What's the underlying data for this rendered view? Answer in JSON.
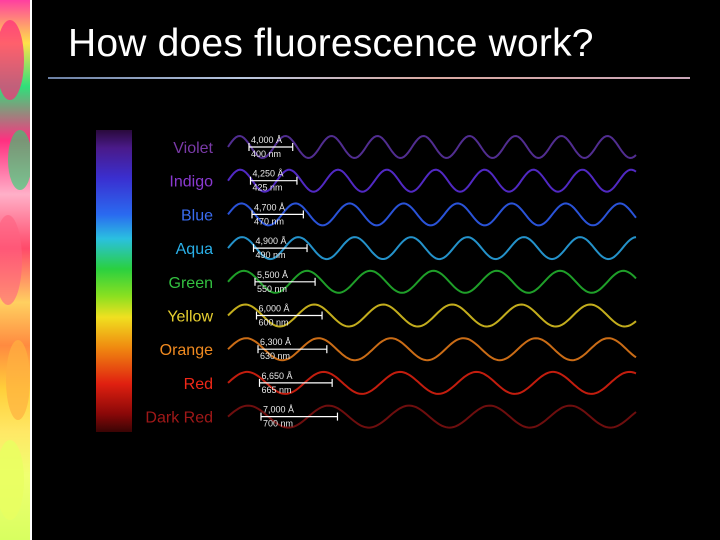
{
  "title": "How does fluorescence work?",
  "spectrum": [
    {
      "color_name": "Violet",
      "angstrom": "4,000 Å",
      "nm": "400 nm",
      "label_color": "#7a3aa8",
      "wave_color": "#5a32a0",
      "wavelength_nm": 400
    },
    {
      "color_name": "Indigo",
      "angstrom": "4,250 Å",
      "nm": "425 nm",
      "label_color": "#8a3ad0",
      "wave_color": "#5a2ed8",
      "wavelength_nm": 425
    },
    {
      "color_name": "Blue",
      "angstrom": "4,700 Å",
      "nm": "470 nm",
      "label_color": "#3a6cf0",
      "wave_color": "#2f5cf0",
      "wavelength_nm": 470
    },
    {
      "color_name": "Aqua",
      "angstrom": "4,900 Å",
      "nm": "490 nm",
      "label_color": "#2ab0e8",
      "wave_color": "#28a2e0",
      "wavelength_nm": 490
    },
    {
      "color_name": "Green",
      "angstrom": "5,500 Å",
      "nm": "550 nm",
      "label_color": "#33c040",
      "wave_color": "#22b02e",
      "wavelength_nm": 550
    },
    {
      "color_name": "Yellow",
      "angstrom": "6,000 Å",
      "nm": "600 nm",
      "label_color": "#e8d030",
      "wave_color": "#d8c020",
      "wavelength_nm": 600
    },
    {
      "color_name": "Orange",
      "angstrom": "6,300 Å",
      "nm": "630 nm",
      "label_color": "#f08a20",
      "wave_color": "#e07818",
      "wavelength_nm": 630
    },
    {
      "color_name": "Red",
      "angstrom": "6,650 Å",
      "nm": "665 nm",
      "label_color": "#f02818",
      "wave_color": "#d82010",
      "wavelength_nm": 665
    },
    {
      "color_name": "Dark Red",
      "angstrom": "7,000 Å",
      "nm": "700 nm",
      "label_color": "#a01818",
      "wave_color": "#7a1010",
      "wavelength_nm": 700
    }
  ]
}
